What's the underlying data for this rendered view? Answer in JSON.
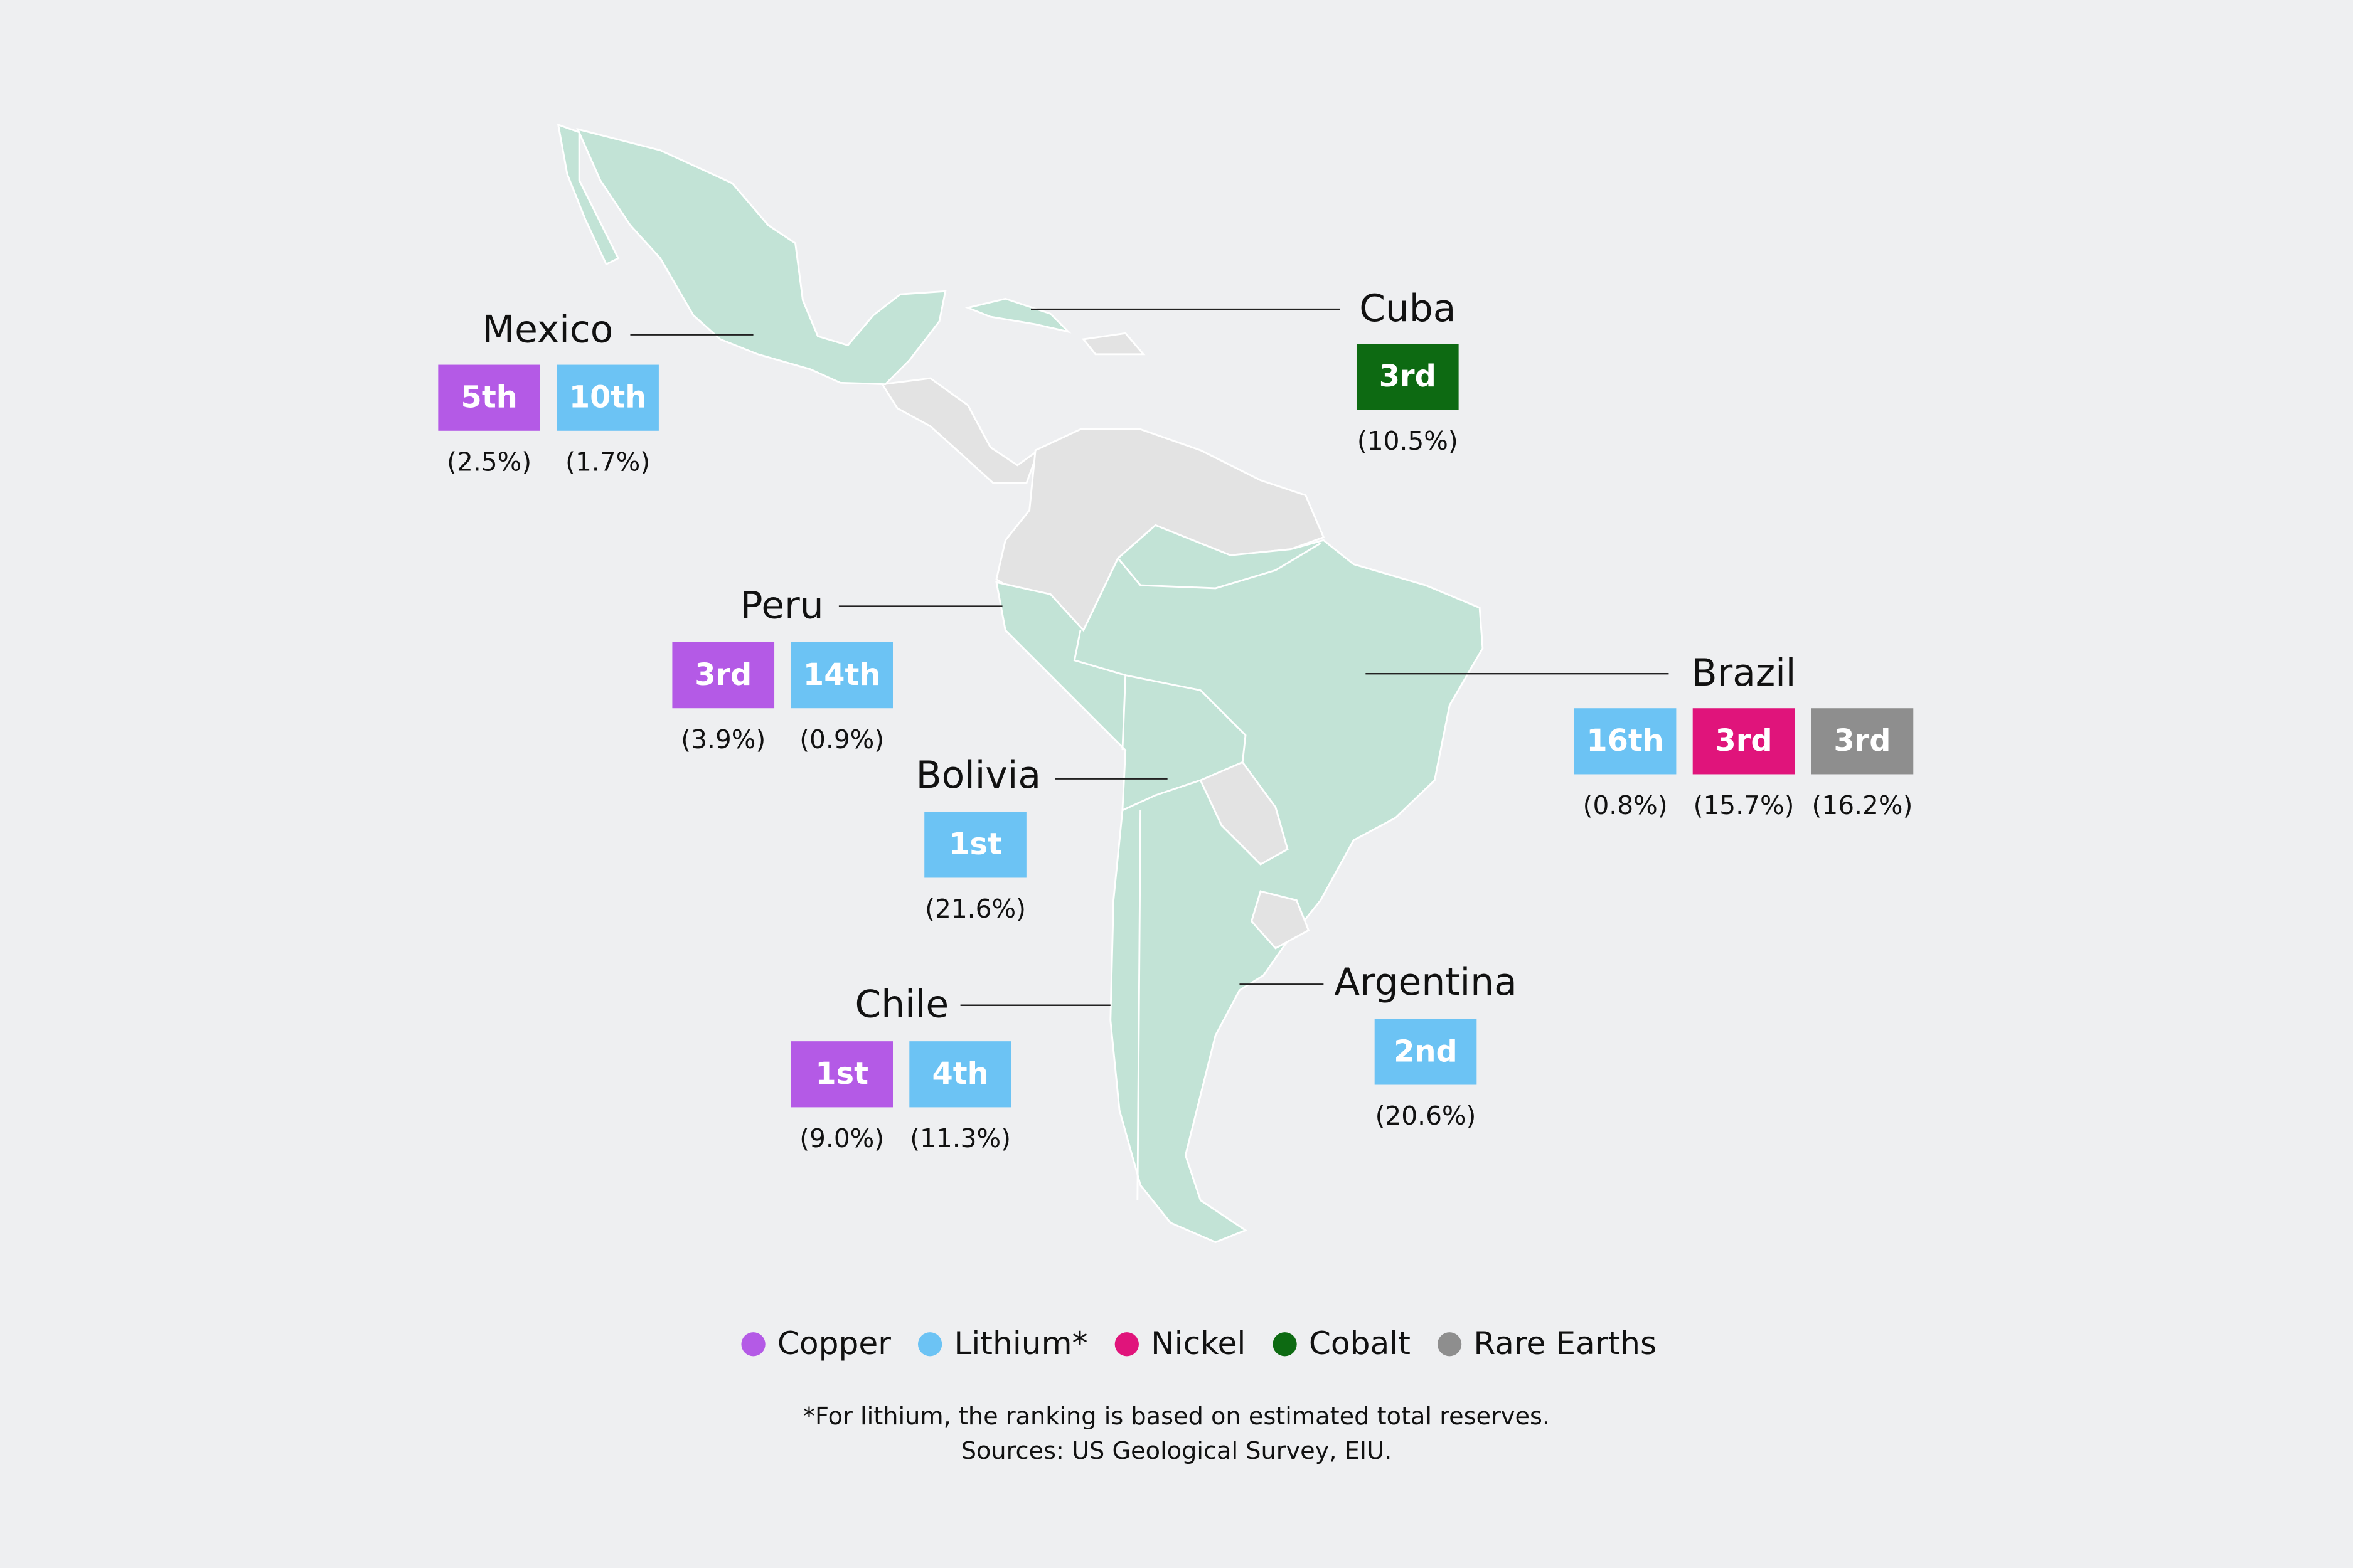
{
  "countries": [
    {
      "name": "Mexico",
      "badges": [
        {
          "rank": "5th",
          "mineral": "Copper",
          "share": "(2.5%)"
        },
        {
          "rank": "10th",
          "mineral": "Lithium*",
          "share": "(1.7%)"
        }
      ]
    },
    {
      "name": "Cuba",
      "badges": [
        {
          "rank": "3rd",
          "mineral": "Cobalt",
          "share": "(10.5%)"
        }
      ]
    },
    {
      "name": "Peru",
      "badges": [
        {
          "rank": "3rd",
          "mineral": "Copper",
          "share": "(3.9%)"
        },
        {
          "rank": "14th",
          "mineral": "Lithium*",
          "share": "(0.9%)"
        }
      ]
    },
    {
      "name": "Bolivia",
      "badges": [
        {
          "rank": "1st",
          "mineral": "Lithium*",
          "share": "(21.6%)"
        }
      ]
    },
    {
      "name": "Chile",
      "badges": [
        {
          "rank": "1st",
          "mineral": "Copper",
          "share": "(9.0%)"
        },
        {
          "rank": "4th",
          "mineral": "Lithium*",
          "share": "(11.3%)"
        }
      ]
    },
    {
      "name": "Argentina",
      "badges": [
        {
          "rank": "2nd",
          "mineral": "Lithium*",
          "share": "(20.6%)"
        }
      ]
    },
    {
      "name": "Brazil",
      "badges": [
        {
          "rank": "16th",
          "mineral": "Lithium*",
          "share": "(0.8%)"
        },
        {
          "rank": "3rd",
          "mineral": "Nickel",
          "share": "(15.7%)"
        },
        {
          "rank": "3rd",
          "mineral": "Rare Earths",
          "share": "(16.2%)"
        }
      ]
    }
  ],
  "legend": [
    {
      "label": "Copper",
      "color": "#b45ae6"
    },
    {
      "label": "Lithium*",
      "color": "#6cc3f4"
    },
    {
      "label": "Nickel",
      "color": "#e0147b"
    },
    {
      "label": "Cobalt",
      "color": "#0d6a12"
    },
    {
      "label": "Rare Earths",
      "color": "#8e8e8e"
    }
  ],
  "footnote": "*For lithium, the ranking is based on estimated total reserves.",
  "sources": "Sources: US Geological Survey, EIU."
}
